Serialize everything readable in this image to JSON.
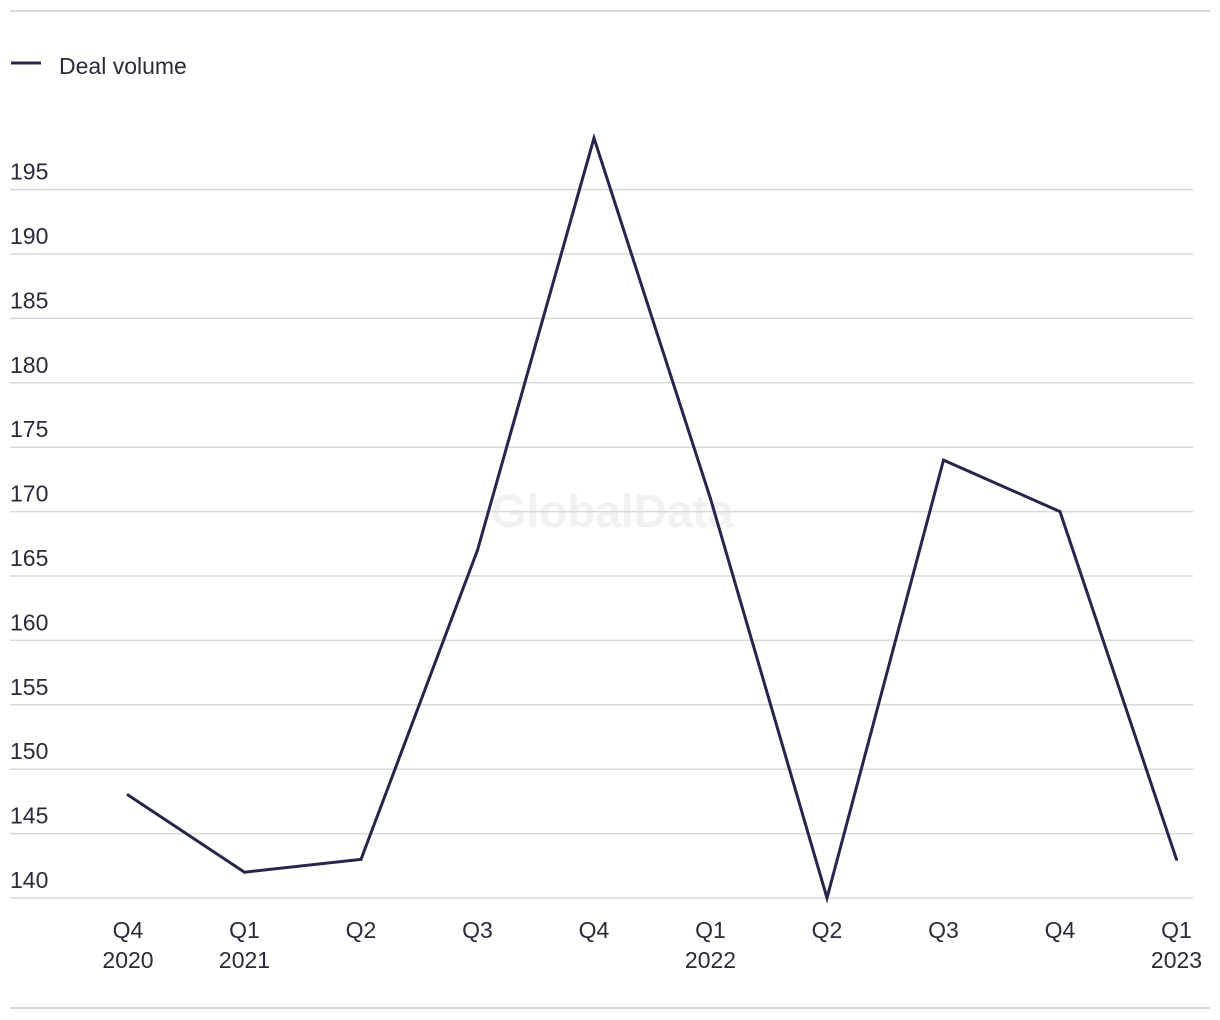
{
  "legend": {
    "label": "Deal volume"
  },
  "watermark": "GlobalData",
  "colors": {
    "series": "#25264a",
    "grid": "#d9d9d9",
    "rule": "#d9d9d9",
    "text": "#2a2a3a"
  },
  "chart_data": {
    "type": "line",
    "title": "",
    "xlabel": "",
    "ylabel": "",
    "categories": [
      [
        "Q4",
        "2020"
      ],
      [
        "Q1",
        "2021"
      ],
      [
        "Q2"
      ],
      [
        "Q3"
      ],
      [
        "Q4"
      ],
      [
        "Q1",
        "2022"
      ],
      [
        "Q2"
      ],
      [
        "Q3"
      ],
      [
        "Q4"
      ],
      [
        "Q1",
        "2023"
      ]
    ],
    "series": [
      {
        "name": "Deal volume",
        "values": [
          148,
          142,
          143,
          167,
          199,
          171,
          140,
          174,
          170,
          143
        ]
      }
    ],
    "ylim": [
      140,
      195
    ],
    "yticks": [
      140,
      145,
      150,
      155,
      160,
      165,
      170,
      175,
      180,
      185,
      190,
      195
    ],
    "grid": true,
    "legend_position": "top-left"
  }
}
